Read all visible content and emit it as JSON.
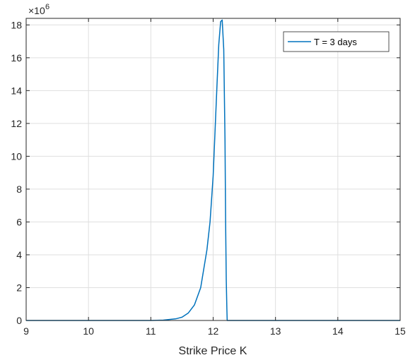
{
  "chart_data": {
    "type": "line",
    "title": "",
    "xlabel": "Strike Price K",
    "ylabel": "",
    "y_exponent_label": "×10",
    "y_exponent_power": "6",
    "xlim": [
      9,
      15
    ],
    "ylim": [
      0,
      18.4
    ],
    "xticks": [
      9,
      10,
      11,
      12,
      13,
      14,
      15
    ],
    "yticks": [
      0,
      2,
      4,
      6,
      8,
      10,
      12,
      14,
      16,
      18
    ],
    "grid": true,
    "legend_position": "top-right",
    "series": [
      {
        "name": "T = 3 days",
        "color": "#0072BD",
        "points": [
          [
            9.0,
            0
          ],
          [
            10.0,
            0
          ],
          [
            11.0,
            0
          ],
          [
            11.2,
            0.02
          ],
          [
            11.4,
            0.1
          ],
          [
            11.5,
            0.2
          ],
          [
            11.6,
            0.45
          ],
          [
            11.7,
            0.95
          ],
          [
            11.8,
            2.0
          ],
          [
            11.9,
            4.3
          ],
          [
            11.95,
            6.0
          ],
          [
            12.0,
            8.8
          ],
          [
            12.03,
            11.5
          ],
          [
            12.06,
            14.2
          ],
          [
            12.09,
            16.8
          ],
          [
            12.12,
            18.2
          ],
          [
            12.145,
            18.3
          ],
          [
            12.17,
            16.5
          ],
          [
            12.19,
            11.0
          ],
          [
            12.2,
            6.0
          ],
          [
            12.21,
            2.5
          ],
          [
            12.22,
            0.7
          ],
          [
            12.225,
            0
          ],
          [
            12.3,
            0
          ],
          [
            13.0,
            0
          ],
          [
            14.0,
            0
          ],
          [
            15.0,
            0
          ]
        ]
      }
    ]
  }
}
